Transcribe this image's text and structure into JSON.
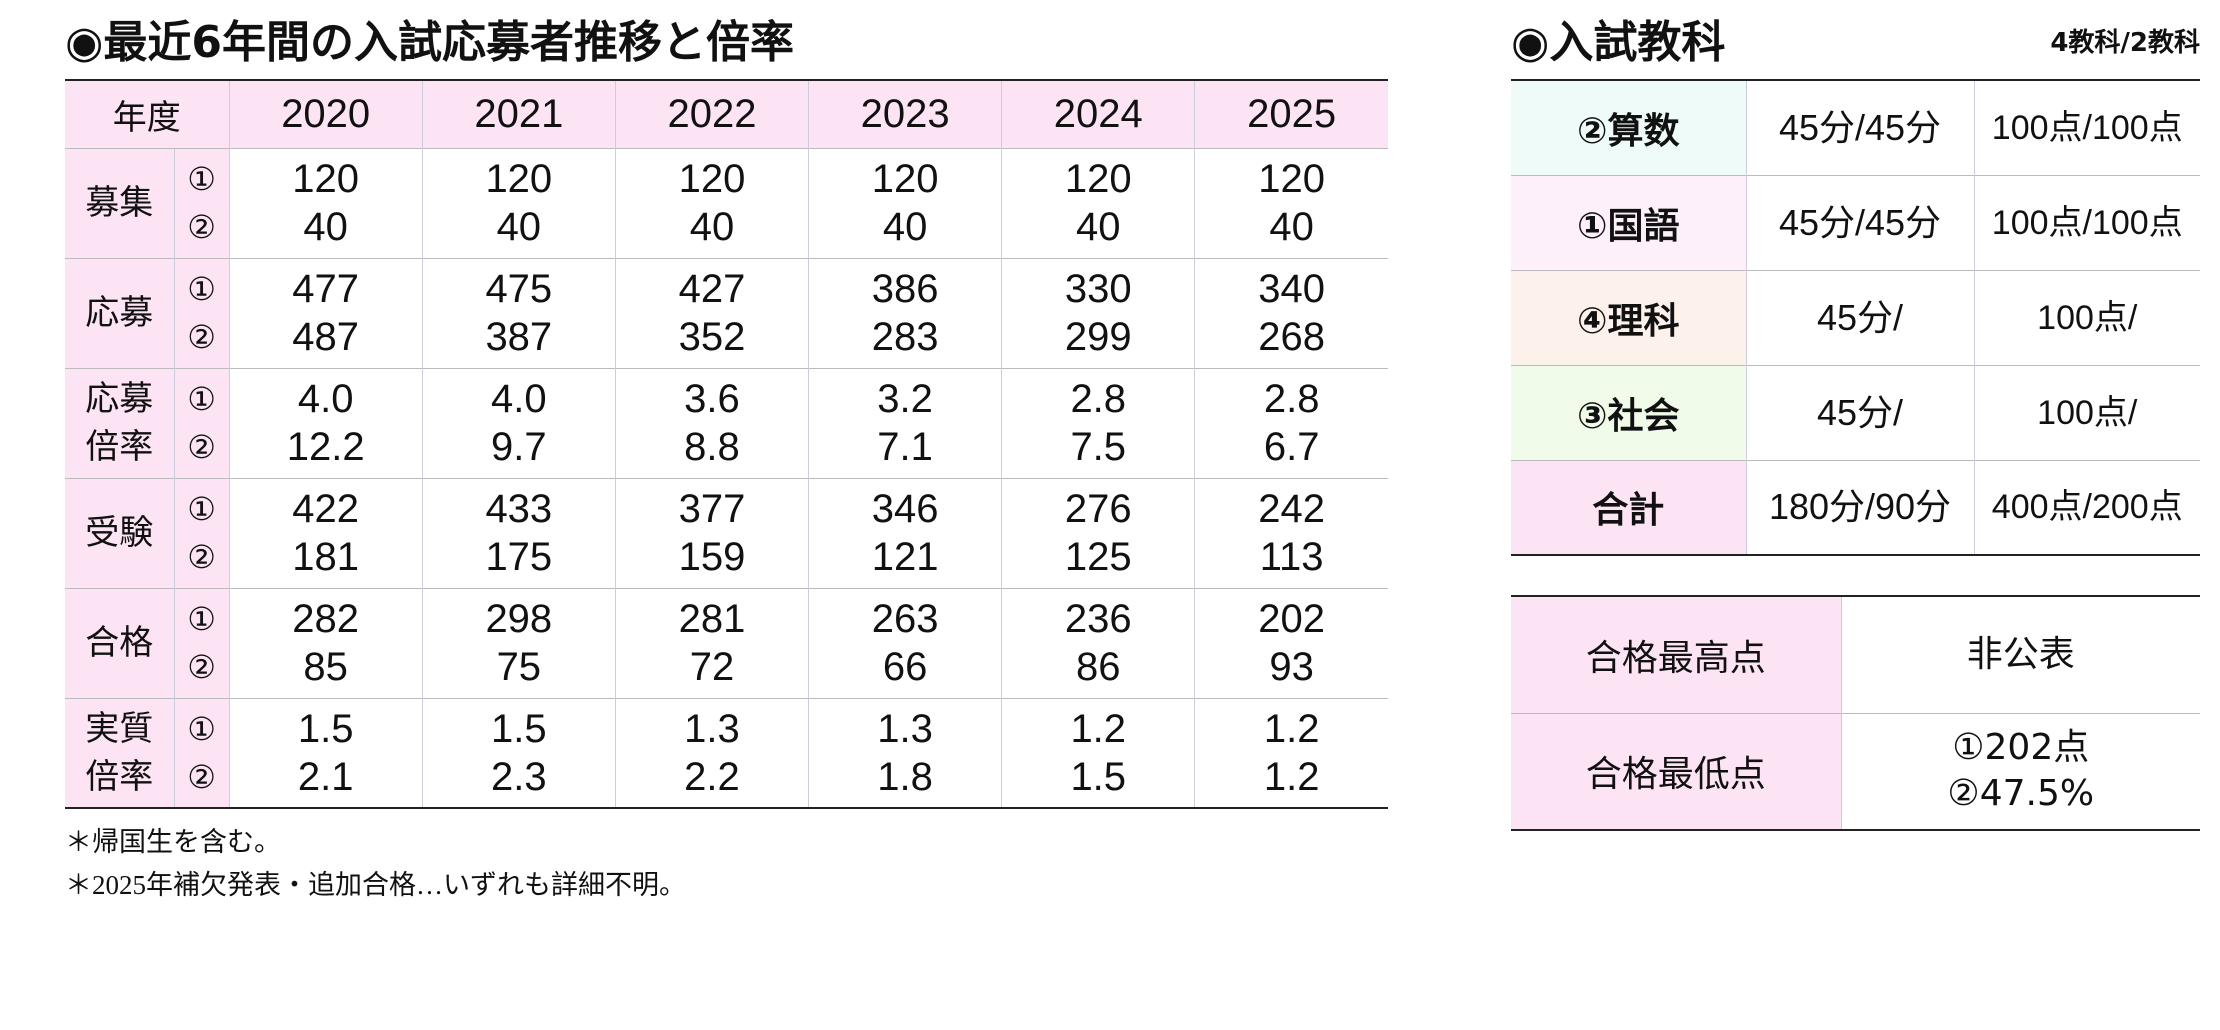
{
  "left": {
    "title": "◉最近6年間の入試応募者推移と倍率",
    "header_label": "年度",
    "years": [
      "2020",
      "2021",
      "2022",
      "2023",
      "2024",
      "2025"
    ],
    "rows": [
      {
        "label": [
          "募集"
        ],
        "subs": [
          "①",
          "②"
        ],
        "values": [
          [
            "120",
            "40"
          ],
          [
            "120",
            "40"
          ],
          [
            "120",
            "40"
          ],
          [
            "120",
            "40"
          ],
          [
            "120",
            "40"
          ],
          [
            "120",
            "40"
          ]
        ]
      },
      {
        "label": [
          "応募"
        ],
        "subs": [
          "①",
          "②"
        ],
        "values": [
          [
            "477",
            "487"
          ],
          [
            "475",
            "387"
          ],
          [
            "427",
            "352"
          ],
          [
            "386",
            "283"
          ],
          [
            "330",
            "299"
          ],
          [
            "340",
            "268"
          ]
        ]
      },
      {
        "label": [
          "応募",
          "倍率"
        ],
        "subs": [
          "①",
          "②"
        ],
        "values": [
          [
            "4.0",
            "12.2"
          ],
          [
            "4.0",
            "9.7"
          ],
          [
            "3.6",
            "8.8"
          ],
          [
            "3.2",
            "7.1"
          ],
          [
            "2.8",
            "7.5"
          ],
          [
            "2.8",
            "6.7"
          ]
        ]
      },
      {
        "label": [
          "受験"
        ],
        "subs": [
          "①",
          "②"
        ],
        "values": [
          [
            "422",
            "181"
          ],
          [
            "433",
            "175"
          ],
          [
            "377",
            "159"
          ],
          [
            "346",
            "121"
          ],
          [
            "276",
            "125"
          ],
          [
            "242",
            "113"
          ]
        ]
      },
      {
        "label": [
          "合格"
        ],
        "subs": [
          "①",
          "②"
        ],
        "values": [
          [
            "282",
            "85"
          ],
          [
            "298",
            "75"
          ],
          [
            "281",
            "72"
          ],
          [
            "263",
            "66"
          ],
          [
            "236",
            "86"
          ],
          [
            "202",
            "93"
          ]
        ]
      },
      {
        "label": [
          "実質",
          "倍率"
        ],
        "subs": [
          "①",
          "②"
        ],
        "values": [
          [
            "1.5",
            "2.1"
          ],
          [
            "1.5",
            "2.3"
          ],
          [
            "1.3",
            "2.2"
          ],
          [
            "1.3",
            "1.8"
          ],
          [
            "1.2",
            "1.5"
          ],
          [
            "1.2",
            "1.2"
          ]
        ]
      }
    ],
    "notes": [
      "＊帰国生を含む。",
      "＊2025年補欠発表・追加合格…いずれも詳細不明。"
    ]
  },
  "right": {
    "title": "◉入試教科",
    "note": "4教科/2教科",
    "subjects": [
      {
        "name": "②算数",
        "time": "45分/45分",
        "score": "100点/100点",
        "color": "#eefbf9"
      },
      {
        "name": "①国語",
        "time": "45分/45分",
        "score": "100点/100点",
        "color": "#fdf0fb"
      },
      {
        "name": "④理科",
        "time": "45分/",
        "score": "100点/",
        "color": "#fdf1ec"
      },
      {
        "name": "③社会",
        "time": "45分/",
        "score": "100点/",
        "color": "#f1fbe9"
      },
      {
        "name": "合計",
        "time": "180分/90分",
        "score": "400点/200点",
        "color": "#fce4f4"
      }
    ],
    "results": [
      {
        "label": "合格最高点",
        "lines": [
          "非公表"
        ]
      },
      {
        "label": "合格最低点",
        "lines": [
          "①202点",
          "②47.5%"
        ]
      }
    ]
  }
}
